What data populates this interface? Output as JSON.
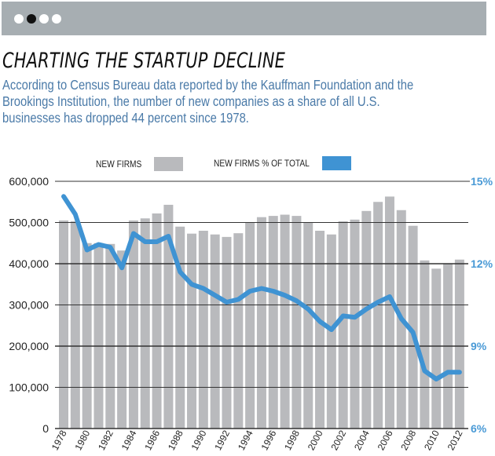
{
  "pager": {
    "dots": 4,
    "active_index": 1
  },
  "header": {
    "title": "CHARTING THE STARTUP DECLINE",
    "subtitle": "According to Census Bureau data reported by the Kauffman Foundation and the Brookings Institution, the number of new companies as a share of all U.S. businesses has dropped 44 percent since 1978."
  },
  "colors": {
    "bars": "#b9babd",
    "line": "#3f93d3",
    "right_axis_text": "#4a9ad6",
    "subtitle": "#4a7aa8",
    "topbar": "#a7aeb2"
  },
  "chart_data": {
    "type": "bar+line",
    "title": "CHARTING THE STARTUP DECLINE",
    "legend": [
      {
        "label": "NEW FIRMS",
        "type": "bar",
        "color": "#b9babd"
      },
      {
        "label": "NEW FIRMS % OF TOTAL",
        "type": "line",
        "color": "#3f93d3"
      }
    ],
    "legend_position": "top-center",
    "x": [
      1978,
      1979,
      1980,
      1981,
      1982,
      1983,
      1984,
      1985,
      1986,
      1987,
      1988,
      1989,
      1990,
      1991,
      1992,
      1993,
      1994,
      1995,
      1996,
      1997,
      1998,
      1999,
      2000,
      2001,
      2002,
      2003,
      2004,
      2005,
      2006,
      2007,
      2008,
      2009,
      2010,
      2011,
      2012
    ],
    "x_tick_labels": [
      "1978",
      "1980",
      "1982",
      "1984",
      "1986",
      "1988",
      "1990",
      "1992",
      "1994",
      "1996",
      "1998",
      "2000",
      "2002",
      "2004",
      "2006",
      "2008",
      "2010",
      "2012"
    ],
    "series": [
      {
        "name": "NEW FIRMS",
        "type": "bar",
        "axis": "left",
        "values": [
          505000,
          503000,
          450000,
          450000,
          448000,
          432000,
          505000,
          510000,
          522000,
          543000,
          490000,
          473000,
          480000,
          471000,
          465000,
          474000,
          500000,
          513000,
          516000,
          519000,
          516000,
          500000,
          480000,
          471000,
          503000,
          507000,
          528000,
          550000,
          563000,
          530000,
          492000,
          408000,
          388000,
          401000,
          410000
        ]
      },
      {
        "name": "NEW FIRMS % OF TOTAL",
        "type": "line",
        "axis": "right",
        "values": [
          14.45,
          13.8,
          12.5,
          12.7,
          12.6,
          11.85,
          13.1,
          12.8,
          12.8,
          13.0,
          11.7,
          11.25,
          11.1,
          10.85,
          10.6,
          10.7,
          11.0,
          11.1,
          11.0,
          10.85,
          10.65,
          10.35,
          9.9,
          9.6,
          10.1,
          10.05,
          10.35,
          10.6,
          10.8,
          10.0,
          9.5,
          8.1,
          7.8,
          8.05,
          8.05
        ]
      }
    ],
    "y_left": {
      "ylim": [
        0,
        600000
      ],
      "ticks": [
        0,
        100000,
        200000,
        300000,
        400000,
        500000,
        600000
      ],
      "tick_labels": [
        "0",
        "100,000",
        "200,000",
        "300,000",
        "400,000",
        "500,000",
        "600,000"
      ]
    },
    "y_right": {
      "ylim": [
        6,
        15
      ],
      "ticks": [
        6,
        9,
        12,
        15
      ],
      "tick_labels": [
        "6%",
        "9%",
        "12%",
        "15%"
      ]
    },
    "grid": true,
    "xlabel": "",
    "ylabel": ""
  }
}
